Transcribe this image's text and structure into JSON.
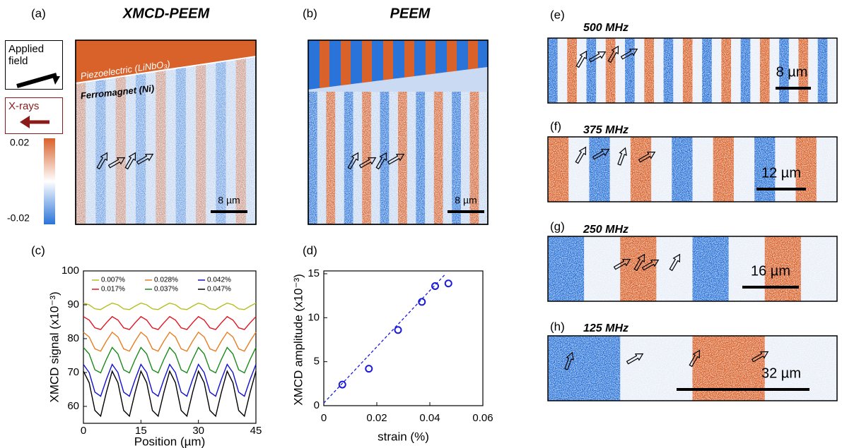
{
  "labels": {
    "a": "(a)",
    "b": "(b)",
    "c": "(c)",
    "d": "(d)",
    "e": "(e)",
    "f": "(f)",
    "g": "(g)",
    "h": "(h)"
  },
  "titles": {
    "xmcd": "XMCD-PEEM",
    "peem": "PEEM"
  },
  "boxes": {
    "applied_field": "Applied field",
    "xrays": "X-rays"
  },
  "colorbar": {
    "max": 0.02,
    "min": -0.02
  },
  "layers": {
    "top": "Piezoelectric (LiNbO₃)",
    "bottom": "Ferromagnet (Ni)"
  },
  "scale_bars": [
    "8 µm",
    "8 µm",
    "8 µm",
    "12 µm",
    "16 µm",
    "32 µm"
  ],
  "frequencies": [
    "500 MHz",
    "375 MHz",
    "250 MHz",
    "125 MHz"
  ],
  "chart_data": [
    {
      "type": "line",
      "xlabel": "Position (µm)",
      "ylabel": "XMCD signal (x10⁻³)",
      "x": [
        0,
        1.5,
        3,
        4.5,
        6,
        7.5,
        9,
        10.5,
        12,
        13.5,
        15,
        16.5,
        18,
        19.5,
        21,
        22.5,
        24,
        25.5,
        27,
        28.5,
        30,
        31.5,
        33,
        34.5,
        36,
        37.5,
        39,
        40.5,
        42,
        43.5,
        45
      ],
      "xlim": [
        0,
        45
      ],
      "ylim": [
        55,
        100
      ],
      "xticks": [
        0,
        15,
        30,
        45
      ],
      "yticks": [
        60,
        70,
        80,
        90,
        100
      ],
      "series": [
        {
          "name": "0.007%",
          "color": "#b5be1e",
          "values": [
            90.5,
            90.0,
            88.8,
            88.6,
            89.6,
            90.5,
            90.0,
            88.8,
            88.6,
            89.6,
            90.5,
            90.0,
            88.8,
            88.6,
            89.6,
            90.5,
            90.0,
            88.8,
            88.6,
            89.6,
            90.5,
            90.0,
            88.8,
            88.6,
            89.6,
            90.5,
            90.0,
            88.8,
            88.6,
            89.6,
            90.5
          ]
        },
        {
          "name": "0.017%",
          "color": "#e0141e",
          "values": [
            86.5,
            85.5,
            83.2,
            82.7,
            84.7,
            86.5,
            85.5,
            83.2,
            82.7,
            84.7,
            86.5,
            85.5,
            83.2,
            82.7,
            84.7,
            86.5,
            85.5,
            83.2,
            82.7,
            84.7,
            86.5,
            85.5,
            83.2,
            82.7,
            84.7,
            86.5,
            85.5,
            83.2,
            82.7,
            84.7,
            86.5
          ]
        },
        {
          "name": "0.028%",
          "color": "#e67e22",
          "values": [
            81.9,
            80.5,
            77.0,
            76.3,
            79.3,
            81.9,
            80.5,
            77.0,
            76.3,
            79.3,
            81.9,
            80.5,
            77.0,
            76.3,
            79.3,
            81.9,
            80.5,
            77.0,
            76.3,
            79.3,
            81.9,
            80.5,
            77.0,
            76.3,
            79.3,
            81.9,
            80.5,
            77.0,
            76.3,
            79.3,
            81.9
          ]
        },
        {
          "name": "0.037%",
          "color": "#1a8a1a",
          "values": [
            77.4,
            75.5,
            70.8,
            69.9,
            73.9,
            77.4,
            75.5,
            70.8,
            69.9,
            73.9,
            77.4,
            75.5,
            70.8,
            69.9,
            73.9,
            77.4,
            75.5,
            70.8,
            69.9,
            73.9,
            77.4,
            75.5,
            70.8,
            69.9,
            73.9,
            77.4,
            75.5,
            70.8,
            69.9,
            73.9,
            77.4
          ]
        },
        {
          "name": "0.042%",
          "color": "#1010d0",
          "values": [
            72.4,
            70.0,
            64.2,
            63.0,
            68.0,
            72.4,
            70.0,
            64.2,
            63.0,
            68.0,
            72.4,
            70.0,
            64.2,
            63.0,
            68.0,
            72.4,
            70.0,
            64.2,
            63.0,
            68.0,
            72.4,
            70.0,
            64.2,
            63.0,
            68.0,
            72.4,
            70.0,
            64.2,
            63.0,
            68.0,
            72.4
          ]
        },
        {
          "name": "0.047%",
          "color": "#000000",
          "values": [
            70.4,
            67.0,
            58.8,
            57.1,
            64.2,
            70.4,
            67.0,
            58.8,
            57.1,
            64.2,
            70.4,
            67.0,
            58.8,
            57.1,
            64.2,
            70.4,
            67.0,
            58.8,
            57.1,
            64.2,
            70.4,
            67.0,
            58.8,
            57.1,
            64.2,
            70.4,
            67.0,
            58.8,
            57.1,
            64.2,
            70.4
          ]
        }
      ]
    },
    {
      "type": "scatter",
      "xlabel": "strain (%)",
      "ylabel": "XMCD amplitude (x10⁻³)",
      "color": "#1a1adb",
      "x": [
        0.007,
        0.017,
        0.028,
        0.037,
        0.042,
        0.047
      ],
      "values": [
        2.4,
        4.2,
        8.6,
        11.8,
        13.6,
        13.9
      ],
      "fit": {
        "x": [
          0,
          0.046
        ],
        "y": [
          0.3,
          15
        ]
      },
      "xlim": [
        0,
        0.06
      ],
      "ylim": [
        0,
        15
      ],
      "xticks": [
        0,
        0.02,
        0.04,
        0.06
      ],
      "yticks": [
        0,
        5,
        10,
        15
      ]
    }
  ]
}
